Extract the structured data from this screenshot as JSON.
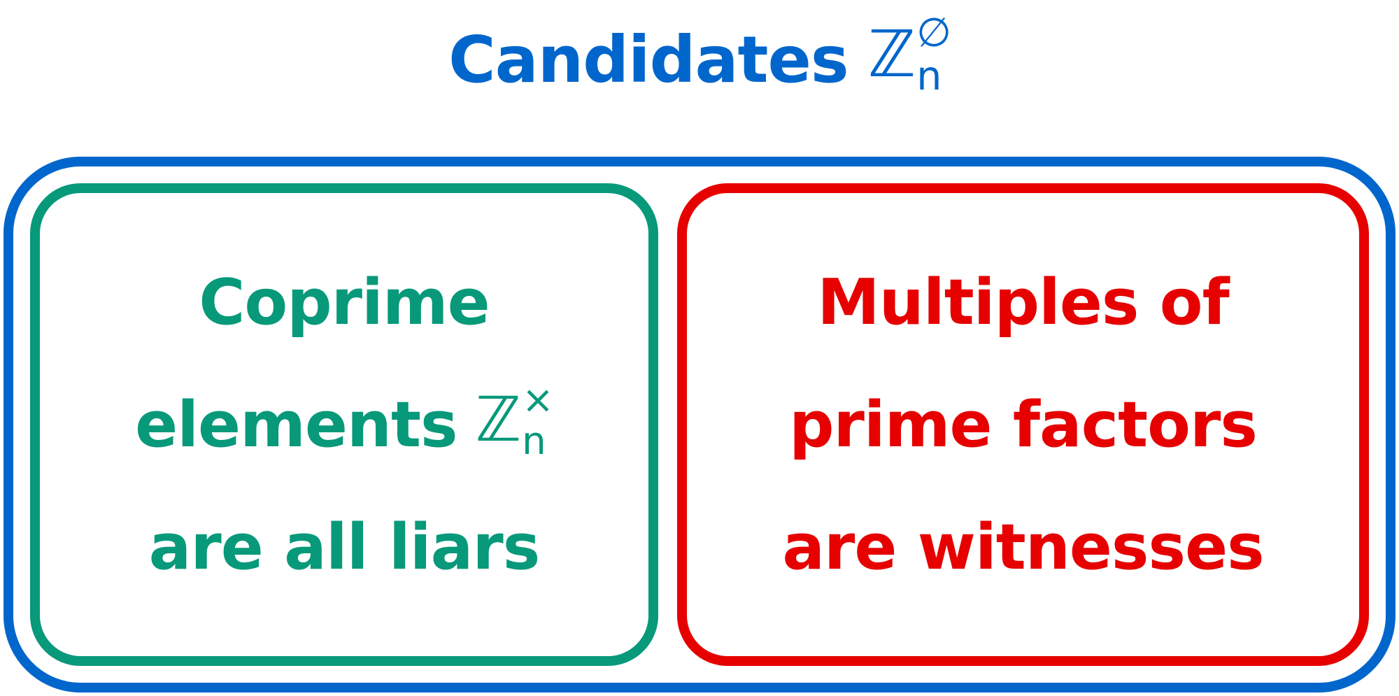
{
  "colors": {
    "candidates": "#0066CC",
    "coprime": "#07997A",
    "multiples": "#E60000"
  },
  "title": {
    "word": "Candidates",
    "symbol": "ℤ",
    "sup": "∅",
    "sub": "n"
  },
  "left": {
    "line1": "Coprime",
    "line2": "elements",
    "symbol": "ℤ",
    "sup": "×",
    "sub": "n",
    "line3": "are all liars"
  },
  "right": {
    "line1": "Multiples of",
    "line2": "prime factors",
    "line3": "are witnesses"
  }
}
